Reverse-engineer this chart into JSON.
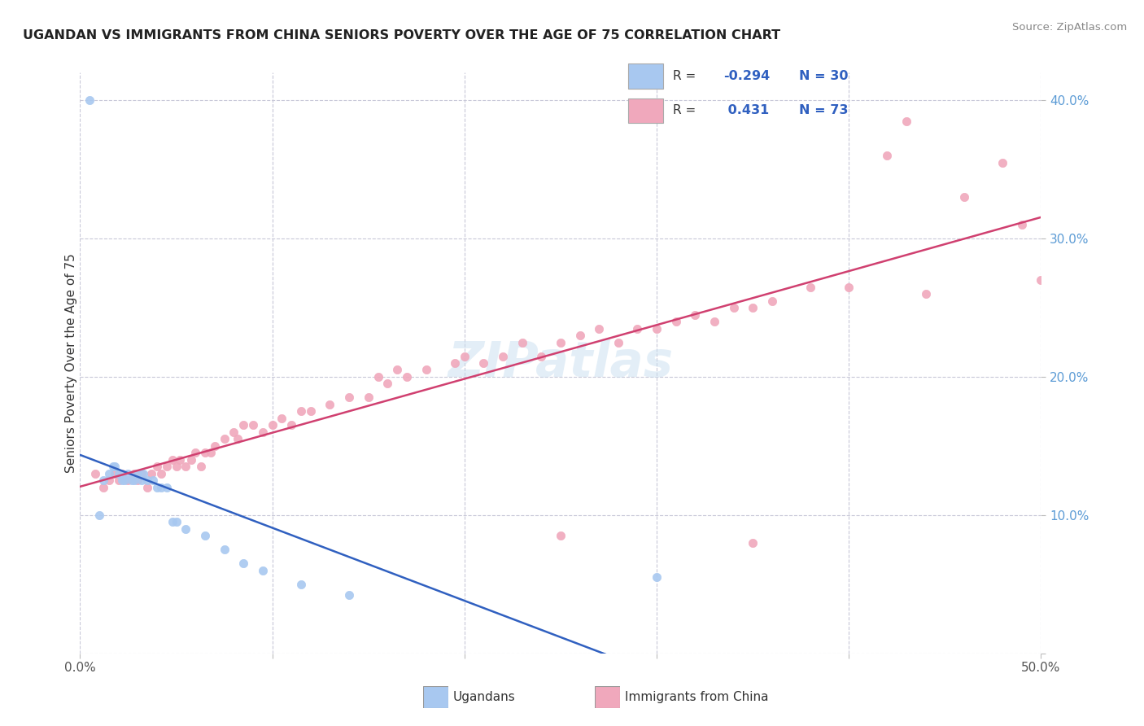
{
  "title": "UGANDAN VS IMMIGRANTS FROM CHINA SENIORS POVERTY OVER THE AGE OF 75 CORRELATION CHART",
  "source": "Source: ZipAtlas.com",
  "ylabel": "Seniors Poverty Over the Age of 75",
  "legend_label1": "Ugandans",
  "legend_label2": "Immigrants from China",
  "color_ugandan": "#a8c8f0",
  "color_china": "#f0a8bc",
  "color_ugandan_line": "#3060c0",
  "color_china_line": "#d04070",
  "bg_color": "#ffffff",
  "grid_color": "#c8c8d8",
  "xlim": [
    0.0,
    0.5
  ],
  "ylim": [
    0.0,
    0.42
  ],
  "ugandan_x": [
    0.005,
    0.01,
    0.012,
    0.015,
    0.017,
    0.018,
    0.02,
    0.022,
    0.023,
    0.025,
    0.027,
    0.028,
    0.03,
    0.032,
    0.033,
    0.035,
    0.038,
    0.04,
    0.042,
    0.045,
    0.048,
    0.05,
    0.055,
    0.065,
    0.075,
    0.085,
    0.095,
    0.115,
    0.14,
    0.3
  ],
  "ugandan_y": [
    0.4,
    0.1,
    0.125,
    0.13,
    0.135,
    0.135,
    0.13,
    0.125,
    0.125,
    0.13,
    0.125,
    0.125,
    0.13,
    0.125,
    0.13,
    0.125,
    0.125,
    0.12,
    0.12,
    0.12,
    0.095,
    0.095,
    0.09,
    0.085,
    0.075,
    0.065,
    0.06,
    0.05,
    0.042,
    0.055
  ],
  "china_x": [
    0.008,
    0.012,
    0.015,
    0.018,
    0.02,
    0.022,
    0.025,
    0.028,
    0.03,
    0.032,
    0.035,
    0.037,
    0.04,
    0.042,
    0.045,
    0.048,
    0.05,
    0.052,
    0.055,
    0.058,
    0.06,
    0.063,
    0.065,
    0.068,
    0.07,
    0.075,
    0.08,
    0.082,
    0.085,
    0.09,
    0.095,
    0.1,
    0.105,
    0.11,
    0.115,
    0.12,
    0.13,
    0.14,
    0.15,
    0.155,
    0.16,
    0.165,
    0.17,
    0.18,
    0.195,
    0.2,
    0.21,
    0.22,
    0.23,
    0.24,
    0.25,
    0.26,
    0.27,
    0.28,
    0.29,
    0.3,
    0.31,
    0.32,
    0.33,
    0.34,
    0.35,
    0.36,
    0.38,
    0.4,
    0.42,
    0.44,
    0.46,
    0.48,
    0.49,
    0.5,
    0.25,
    0.35,
    0.43
  ],
  "china_y": [
    0.13,
    0.12,
    0.125,
    0.13,
    0.125,
    0.13,
    0.125,
    0.13,
    0.125,
    0.13,
    0.12,
    0.13,
    0.135,
    0.13,
    0.135,
    0.14,
    0.135,
    0.14,
    0.135,
    0.14,
    0.145,
    0.135,
    0.145,
    0.145,
    0.15,
    0.155,
    0.16,
    0.155,
    0.165,
    0.165,
    0.16,
    0.165,
    0.17,
    0.165,
    0.175,
    0.175,
    0.18,
    0.185,
    0.185,
    0.2,
    0.195,
    0.205,
    0.2,
    0.205,
    0.21,
    0.215,
    0.21,
    0.215,
    0.225,
    0.215,
    0.225,
    0.23,
    0.235,
    0.225,
    0.235,
    0.235,
    0.24,
    0.245,
    0.24,
    0.25,
    0.25,
    0.255,
    0.265,
    0.265,
    0.36,
    0.26,
    0.33,
    0.355,
    0.31,
    0.27,
    0.085,
    0.08,
    0.385
  ]
}
